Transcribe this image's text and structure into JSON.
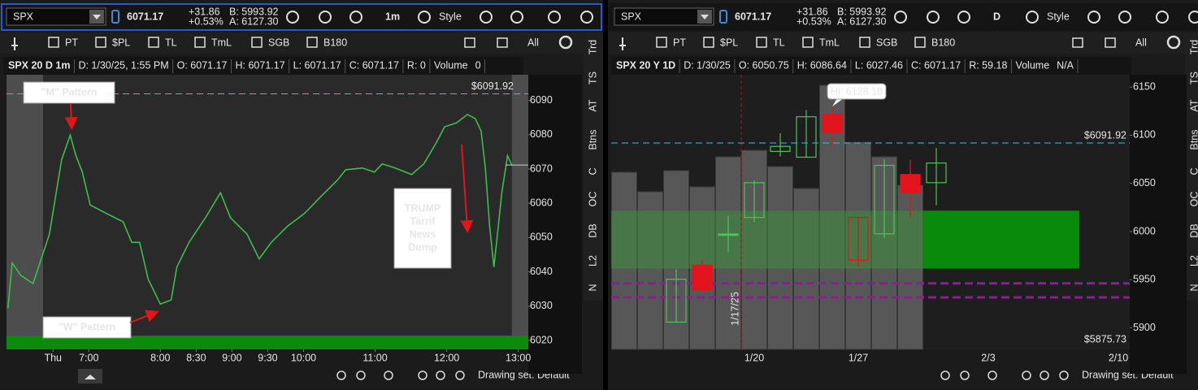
{
  "panels": [
    {
      "symbol": "SPX",
      "last": "6071.17",
      "change": "+31.86",
      "change_pct": "+0.53%",
      "bid": "B: 5993.92",
      "ask": "A: 6127.30",
      "interval": "1m",
      "style": "Style",
      "tools": [
        "PT",
        "$PL",
        "TL",
        "TmL",
        "SGB",
        "B180"
      ],
      "all_label": "All",
      "info": [
        "SPX 20 D 1m",
        "D: 1/30/25, 1:55 PM",
        "O: 6071.17",
        "H: 6071.17",
        "L: 6071.17",
        "C: 6071.17",
        "R: 0",
        "Volume",
        "0"
      ],
      "tabs": [
        "Trd",
        "TS",
        "AT",
        "Btns",
        "C",
        "OC",
        "DB",
        "L2",
        "N"
      ],
      "drawing_set": "Drawing set: Default"
    },
    {
      "symbol": "SPX",
      "last": "6071.17",
      "change": "+31.86",
      "change_pct": "+0.53%",
      "bid": "B: 5993.92",
      "ask": "A: 6127.30",
      "interval": "D",
      "style": "Style",
      "tools": [
        "PT",
        "$PL",
        "TL",
        "TmL",
        "SGB",
        "B180"
      ],
      "all_label": "All",
      "info": [
        "SPX 20 Y 1D",
        "D: 1/30/25",
        "O: 6050.75",
        "H: 6086.64",
        "L: 6027.46",
        "C: 6071.17",
        "R: 59.18",
        "Volume",
        "N/A"
      ],
      "tabs": [
        "Trd",
        "TS",
        "AT",
        "Btns",
        "C",
        "OC",
        "DB",
        "L2",
        "N"
      ],
      "drawing_set": "Drawing set: Default"
    }
  ],
  "chart_data": [
    {
      "type": "line",
      "color": "#3dbd4a",
      "x": [
        5.87,
        5.93,
        6.05,
        6.22,
        6.45,
        6.62,
        6.74,
        6.82,
        6.91,
        7.02,
        7.25,
        7.48,
        7.6,
        7.71,
        7.83,
        8.0,
        8.15,
        8.23,
        8.4,
        8.63,
        8.84,
        8.98,
        9.21,
        9.38,
        9.55,
        9.78,
        10.01,
        10.24,
        10.47,
        10.59,
        10.82,
        10.99,
        11.1,
        11.28,
        11.51,
        11.68,
        11.85,
        11.97,
        12.14,
        12.29,
        12.4,
        12.48,
        12.54,
        12.6,
        12.66,
        12.71,
        12.77,
        12.85,
        12.91
      ],
      "values": [
        6029.4,
        6042.6,
        6039.0,
        6036.6,
        6051.0,
        6072.7,
        6079.9,
        6073.9,
        6069.1,
        6059.5,
        6057.0,
        6054.6,
        6048.6,
        6048.6,
        6037.8,
        6030.6,
        6031.8,
        6041.4,
        6048.6,
        6055.8,
        6063.1,
        6055.8,
        6051.0,
        6043.8,
        6048.6,
        6053.4,
        6057.0,
        6061.9,
        6066.7,
        6069.8,
        6070.3,
        6069.1,
        6071.5,
        6070.3,
        6068.4,
        6071.5,
        6077.5,
        6082.3,
        6083.5,
        6085.9,
        6084.7,
        6081.1,
        6070.3,
        6053.4,
        6041.4,
        6051.0,
        6063.1,
        6073.9,
        6071.17
      ],
      "xlim": [
        5.85,
        13.14
      ],
      "xticks": [
        {
          "value": 6.5,
          "label": "Thu"
        },
        {
          "value": 7,
          "label": "7:00"
        },
        {
          "value": 8,
          "label": "8:00"
        },
        {
          "value": 8.5,
          "label": "8:30"
        },
        {
          "value": 9,
          "label": "9:00"
        },
        {
          "value": 9.5,
          "label": "9:30"
        },
        {
          "value": 10,
          "label": "10:00"
        },
        {
          "value": 11,
          "label": "11:00"
        },
        {
          "value": 12,
          "label": "12:00"
        },
        {
          "value": 13,
          "label": "13:00"
        }
      ],
      "ylim": [
        6017.4,
        6097.5
      ],
      "yticks": [
        6020,
        6030,
        6040,
        6050,
        6060,
        6070,
        6080,
        6090
      ],
      "shaded": [
        [
          5.85,
          6.36
        ],
        [
          12.91,
          13.14
        ]
      ],
      "zone": {
        "low": 6017.4,
        "high": 6021.4,
        "color": "#0b8a0b"
      },
      "last": 6071.17,
      "levels": [
        {
          "value": 6091.92,
          "label": "$6091.92",
          "color": "#27c6d9"
        }
      ],
      "annotations": [
        {
          "lines": [
            "\"M\" Pattern"
          ],
          "x": 6.76,
          "y": 6082.3
        },
        {
          "lines": [
            "\"W\" Pattern"
          ],
          "x": 7.94,
          "y": 6028.2
        },
        {
          "lines": [
            "TRUMP",
            "Tarrif",
            "News",
            "Dump"
          ],
          "x": 12.29,
          "y": 6052.2
        }
      ]
    },
    {
      "type": "candlestick",
      "up_color": "#4cc35a",
      "down_color": "#e3141b",
      "volume_color": "#575757",
      "categories": [
        null,
        null,
        null,
        null,
        null,
        "1/20",
        null,
        null,
        null,
        "1/27",
        null,
        null,
        null,
        null,
        "2/3",
        null,
        null,
        null,
        null,
        "2/10"
      ],
      "open": [
        null,
        null,
        5906.0,
        5965.1,
        5997.5,
        6014.7,
        6083.2,
        6077.2,
        6121.7,
        5970.2,
        5997.6,
        6059.2,
        6050.75,
        null,
        null,
        null,
        null,
        null,
        null,
        null
      ],
      "high": [
        null,
        null,
        5960.8,
        5970.2,
        6016.4,
        6053.3,
        6102.1,
        6126.0,
        6128.18,
        6016.4,
        6074.7,
        6074.7,
        6086.64,
        null,
        null,
        null,
        null,
        null,
        null,
        null
      ],
      "low": [
        null,
        null,
        5906.0,
        5937.7,
        5978.8,
        6010.4,
        6078.1,
        6077.2,
        6089.2,
        5963.5,
        5993.3,
        6014.7,
        6027.46,
        null,
        null,
        null,
        null,
        null,
        null,
        null
      ],
      "close": [
        null,
        null,
        5950.5,
        5939.4,
        5996.0,
        6050.7,
        6088.4,
        6119.2,
        6102.9,
        6014.7,
        6068.7,
        6040.4,
        6071.17,
        null,
        null,
        null,
        null,
        null,
        null,
        null
      ],
      "volume": [
        218,
        194,
        220,
        200,
        237,
        245,
        225,
        198,
        325,
        255,
        237,
        202,
        null,
        null,
        null,
        null,
        null,
        null,
        null,
        null
      ],
      "ylim": [
        5877.7,
        6162.8
      ],
      "yticks": [
        5900,
        5950,
        6000,
        6050,
        6100,
        6150
      ],
      "zones": [
        {
          "low": 5961.6,
          "high": 6021.6,
          "from": 0,
          "to": 11,
          "color": "#3c8f3c"
        },
        {
          "low": 5961.6,
          "high": 6021.6,
          "from": 12,
          "to": 17,
          "color": "#0a8a0a"
        }
      ],
      "levels": [
        {
          "value": 6091.92,
          "label": "$6091.92",
          "color": "#27c6d9"
        },
        {
          "value": 5946.2,
          "color": "#8b1f8b"
        },
        {
          "value": 5931.7,
          "color": "#8b1f8b"
        },
        {
          "value": 5875.73,
          "label": "$5875.73",
          "color": "#e0302a",
          "line": false
        }
      ],
      "hi_label": "Hi: 6128.18",
      "event_line": {
        "label": "1/17/25",
        "category": 4,
        "color": "#b01818"
      }
    }
  ]
}
